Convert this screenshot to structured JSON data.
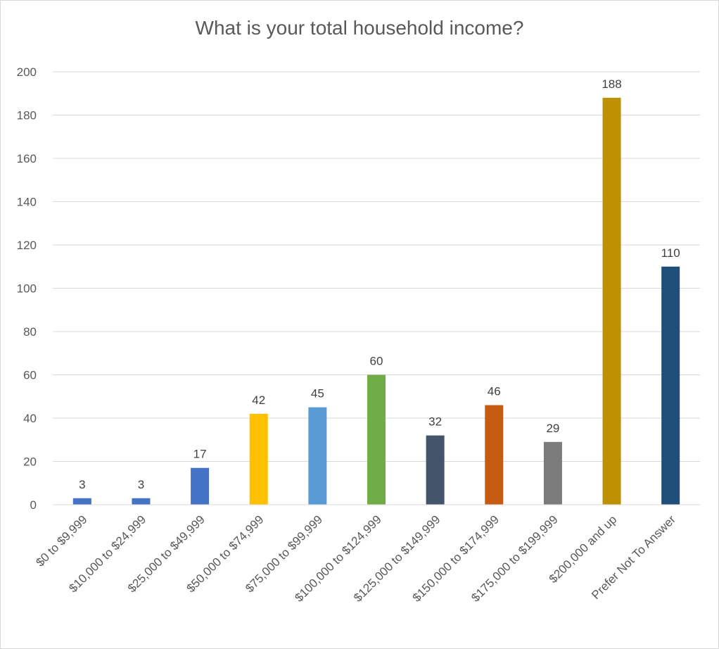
{
  "chart_data": {
    "type": "bar",
    "title": "What is your total household income?",
    "categories": [
      "$0 to $9,999",
      "$10,000 to $24,999",
      "$25,000 to $49,999",
      "$50,000 to $74,999",
      "$75,000 to $99,999",
      "$100,000 to $124,999",
      "$125,000 to $149,999",
      "$150,000 to $174,999",
      "$175,000 to $199,999",
      "$200,000 and up",
      "Prefer Not To Answer"
    ],
    "values": [
      3,
      3,
      17,
      42,
      45,
      60,
      32,
      46,
      29,
      188,
      110
    ],
    "colors": [
      "#4472c4",
      "#4472c4",
      "#4472c4",
      "#ffc000",
      "#5b9bd5",
      "#70ad47",
      "#44546a",
      "#c55a11",
      "#7b7b7b",
      "#bf9000",
      "#1f4e79"
    ],
    "ylim": [
      0,
      200
    ],
    "yticks": [
      0,
      20,
      40,
      60,
      80,
      100,
      120,
      140,
      160,
      180,
      200
    ],
    "grid": true,
    "legend": "none",
    "data_labels": true
  }
}
